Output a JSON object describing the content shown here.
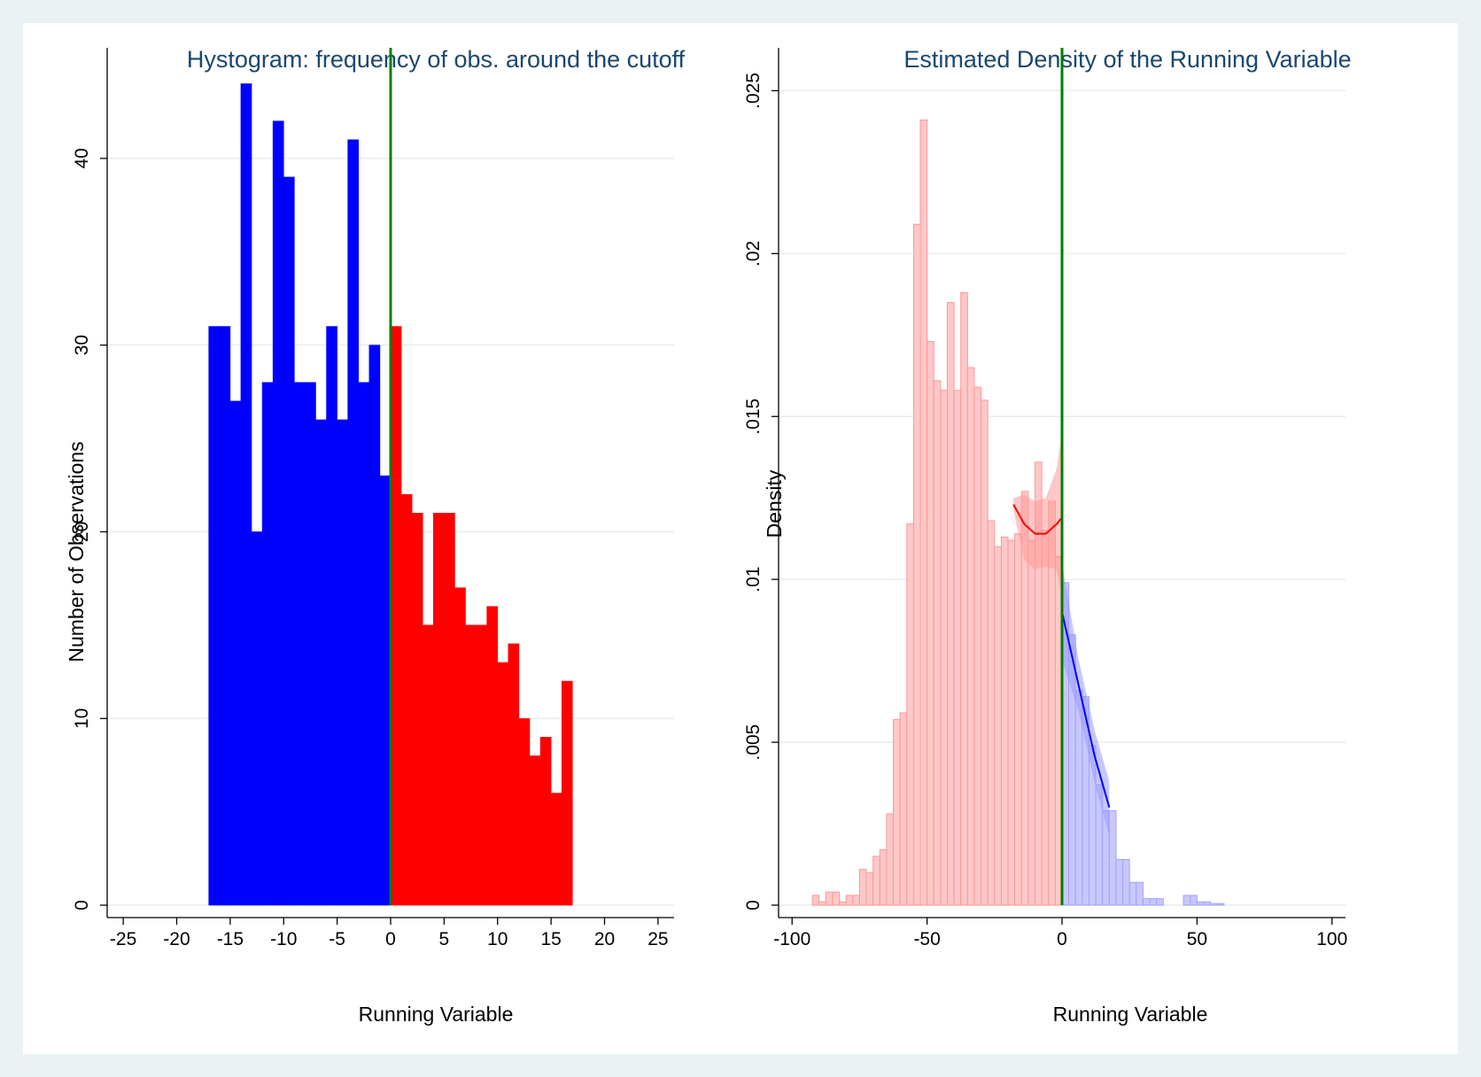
{
  "chart_data": [
    {
      "type": "bar",
      "title": "Hystogram: frequency of obs. around the cutoff",
      "xlabel": "Running Variable",
      "ylabel": "Number of Observations",
      "xlim": [
        -26.5,
        26.5
      ],
      "ylim": [
        0,
        44.5
      ],
      "xticks": [
        "-25",
        "-20",
        "-15",
        "-10",
        "-5",
        "0",
        "5",
        "10",
        "15",
        "20",
        "25"
      ],
      "yticks": [
        "0",
        "10",
        "20",
        "30",
        "40"
      ],
      "grid": true,
      "cutoff": 0,
      "bin_width": 1,
      "series": [
        {
          "color": "#0000ff",
          "bin_start": [
            -17,
            -16,
            -15,
            -14,
            -13,
            -12,
            -11,
            -10,
            -9,
            -8,
            -7,
            -6,
            -5,
            -4,
            -3,
            -2,
            -1
          ],
          "values": [
            31,
            31,
            27,
            44,
            20,
            28,
            42,
            39,
            28,
            28,
            26,
            31,
            26,
            41,
            28,
            30,
            23
          ]
        },
        {
          "color": "#ff0000",
          "bin_start": [
            0,
            1,
            2,
            3,
            4,
            5,
            6,
            7,
            8,
            9,
            10,
            11,
            12,
            13,
            14,
            15,
            16
          ],
          "values": [
            31,
            22,
            21,
            15,
            21,
            21,
            17,
            15,
            15,
            16,
            13,
            14,
            10,
            8,
            9,
            6,
            12
          ]
        }
      ],
      "colors": {
        "cutoff_line": "#008000",
        "grid": "#e6ecee"
      }
    },
    {
      "type": "bar",
      "title": "Estimated Density of the Running Variable",
      "xlabel": "Running Variable",
      "ylabel": "Density",
      "xlim": [
        -105,
        105
      ],
      "ylim": [
        0,
        0.0255
      ],
      "xticks": [
        "-100",
        "-50",
        "0",
        "50",
        "100"
      ],
      "yticks": [
        "0",
        ".005",
        ".01",
        ".015",
        ".02",
        ".025"
      ],
      "grid": true,
      "cutoff": 0,
      "bin_width": 2.5,
      "series": [
        {
          "color": "#ffc8c8",
          "edge_color": "#ff9696",
          "bin_start": [
            -92.5,
            -90,
            -87.5,
            -85,
            -82.5,
            -80,
            -77.5,
            -75,
            -72.5,
            -70,
            -67.5,
            -65,
            -62.5,
            -60,
            -57.5,
            -55,
            -52.5,
            -50,
            -47.5,
            -45,
            -42.5,
            -40,
            -37.5,
            -35,
            -32.5,
            -30,
            -27.5,
            -25,
            -22.5,
            -20,
            -17.5,
            -15,
            -12.5,
            -10,
            -7.5,
            -5,
            -2.5
          ],
          "values": [
            0.0003,
            0.0001,
            0.0004,
            0.0004,
            0.0001,
            0.0003,
            0.0003,
            0.0011,
            0.001,
            0.0015,
            0.0017,
            0.0028,
            0.0057,
            0.0059,
            0.0117,
            0.0209,
            0.0241,
            0.0173,
            0.0161,
            0.0158,
            0.0185,
            0.0158,
            0.0188,
            0.0165,
            0.0159,
            0.0155,
            0.0118,
            0.011,
            0.0113,
            0.0112,
            0.0114,
            0.0127,
            0.0112,
            0.0136,
            0.0115,
            0.0124,
            0.0107
          ]
        },
        {
          "color": "#c8c8ff",
          "edge_color": "#a0a0ff",
          "bin_start": [
            0,
            2.5,
            5,
            7.5,
            10,
            12.5,
            15,
            17.5,
            20,
            22.5,
            25,
            27.5,
            30,
            32.5,
            35,
            37.5,
            40,
            42.5,
            45,
            47.5,
            50,
            52.5,
            55,
            57.5
          ],
          "values": [
            0.0099,
            0.0083,
            0.0066,
            0.0064,
            0.0049,
            0.0037,
            0.0029,
            0.0029,
            0.0014,
            0.0014,
            0.0007,
            0.0007,
            0.0002,
            0.0002,
            0.0002,
            0.0,
            0.0,
            0.0,
            0.0003,
            0.0003,
            0.0001,
            0.0001,
            5e-05,
            5e-05
          ]
        }
      ],
      "fit_left": {
        "color": "#ff0000",
        "x": [
          -18,
          -14,
          -10,
          -6,
          -2,
          0
        ],
        "y": [
          0.0123,
          0.0117,
          0.0114,
          0.0114,
          0.0117,
          0.0119
        ],
        "ci_low": [
          0.0121,
          0.0106,
          0.0103,
          0.0104,
          0.0103,
          0.0095
        ],
        "ci_high": [
          0.0125,
          0.0126,
          0.0124,
          0.0125,
          0.0134,
          0.0145
        ]
      },
      "fit_right": {
        "color": "#0000ff",
        "x": [
          0,
          6,
          12,
          17.5
        ],
        "y": [
          0.009,
          0.0068,
          0.0046,
          0.003
        ],
        "ci_low": [
          0.0075,
          0.006,
          0.0038,
          0.0021
        ],
        "ci_high": [
          0.0105,
          0.0076,
          0.0054,
          0.0038
        ]
      },
      "colors": {
        "cutoff_line": "#008000",
        "grid": "#e6ecee",
        "ci_left": "#ff9999",
        "ci_right": "#9999ff"
      }
    }
  ]
}
